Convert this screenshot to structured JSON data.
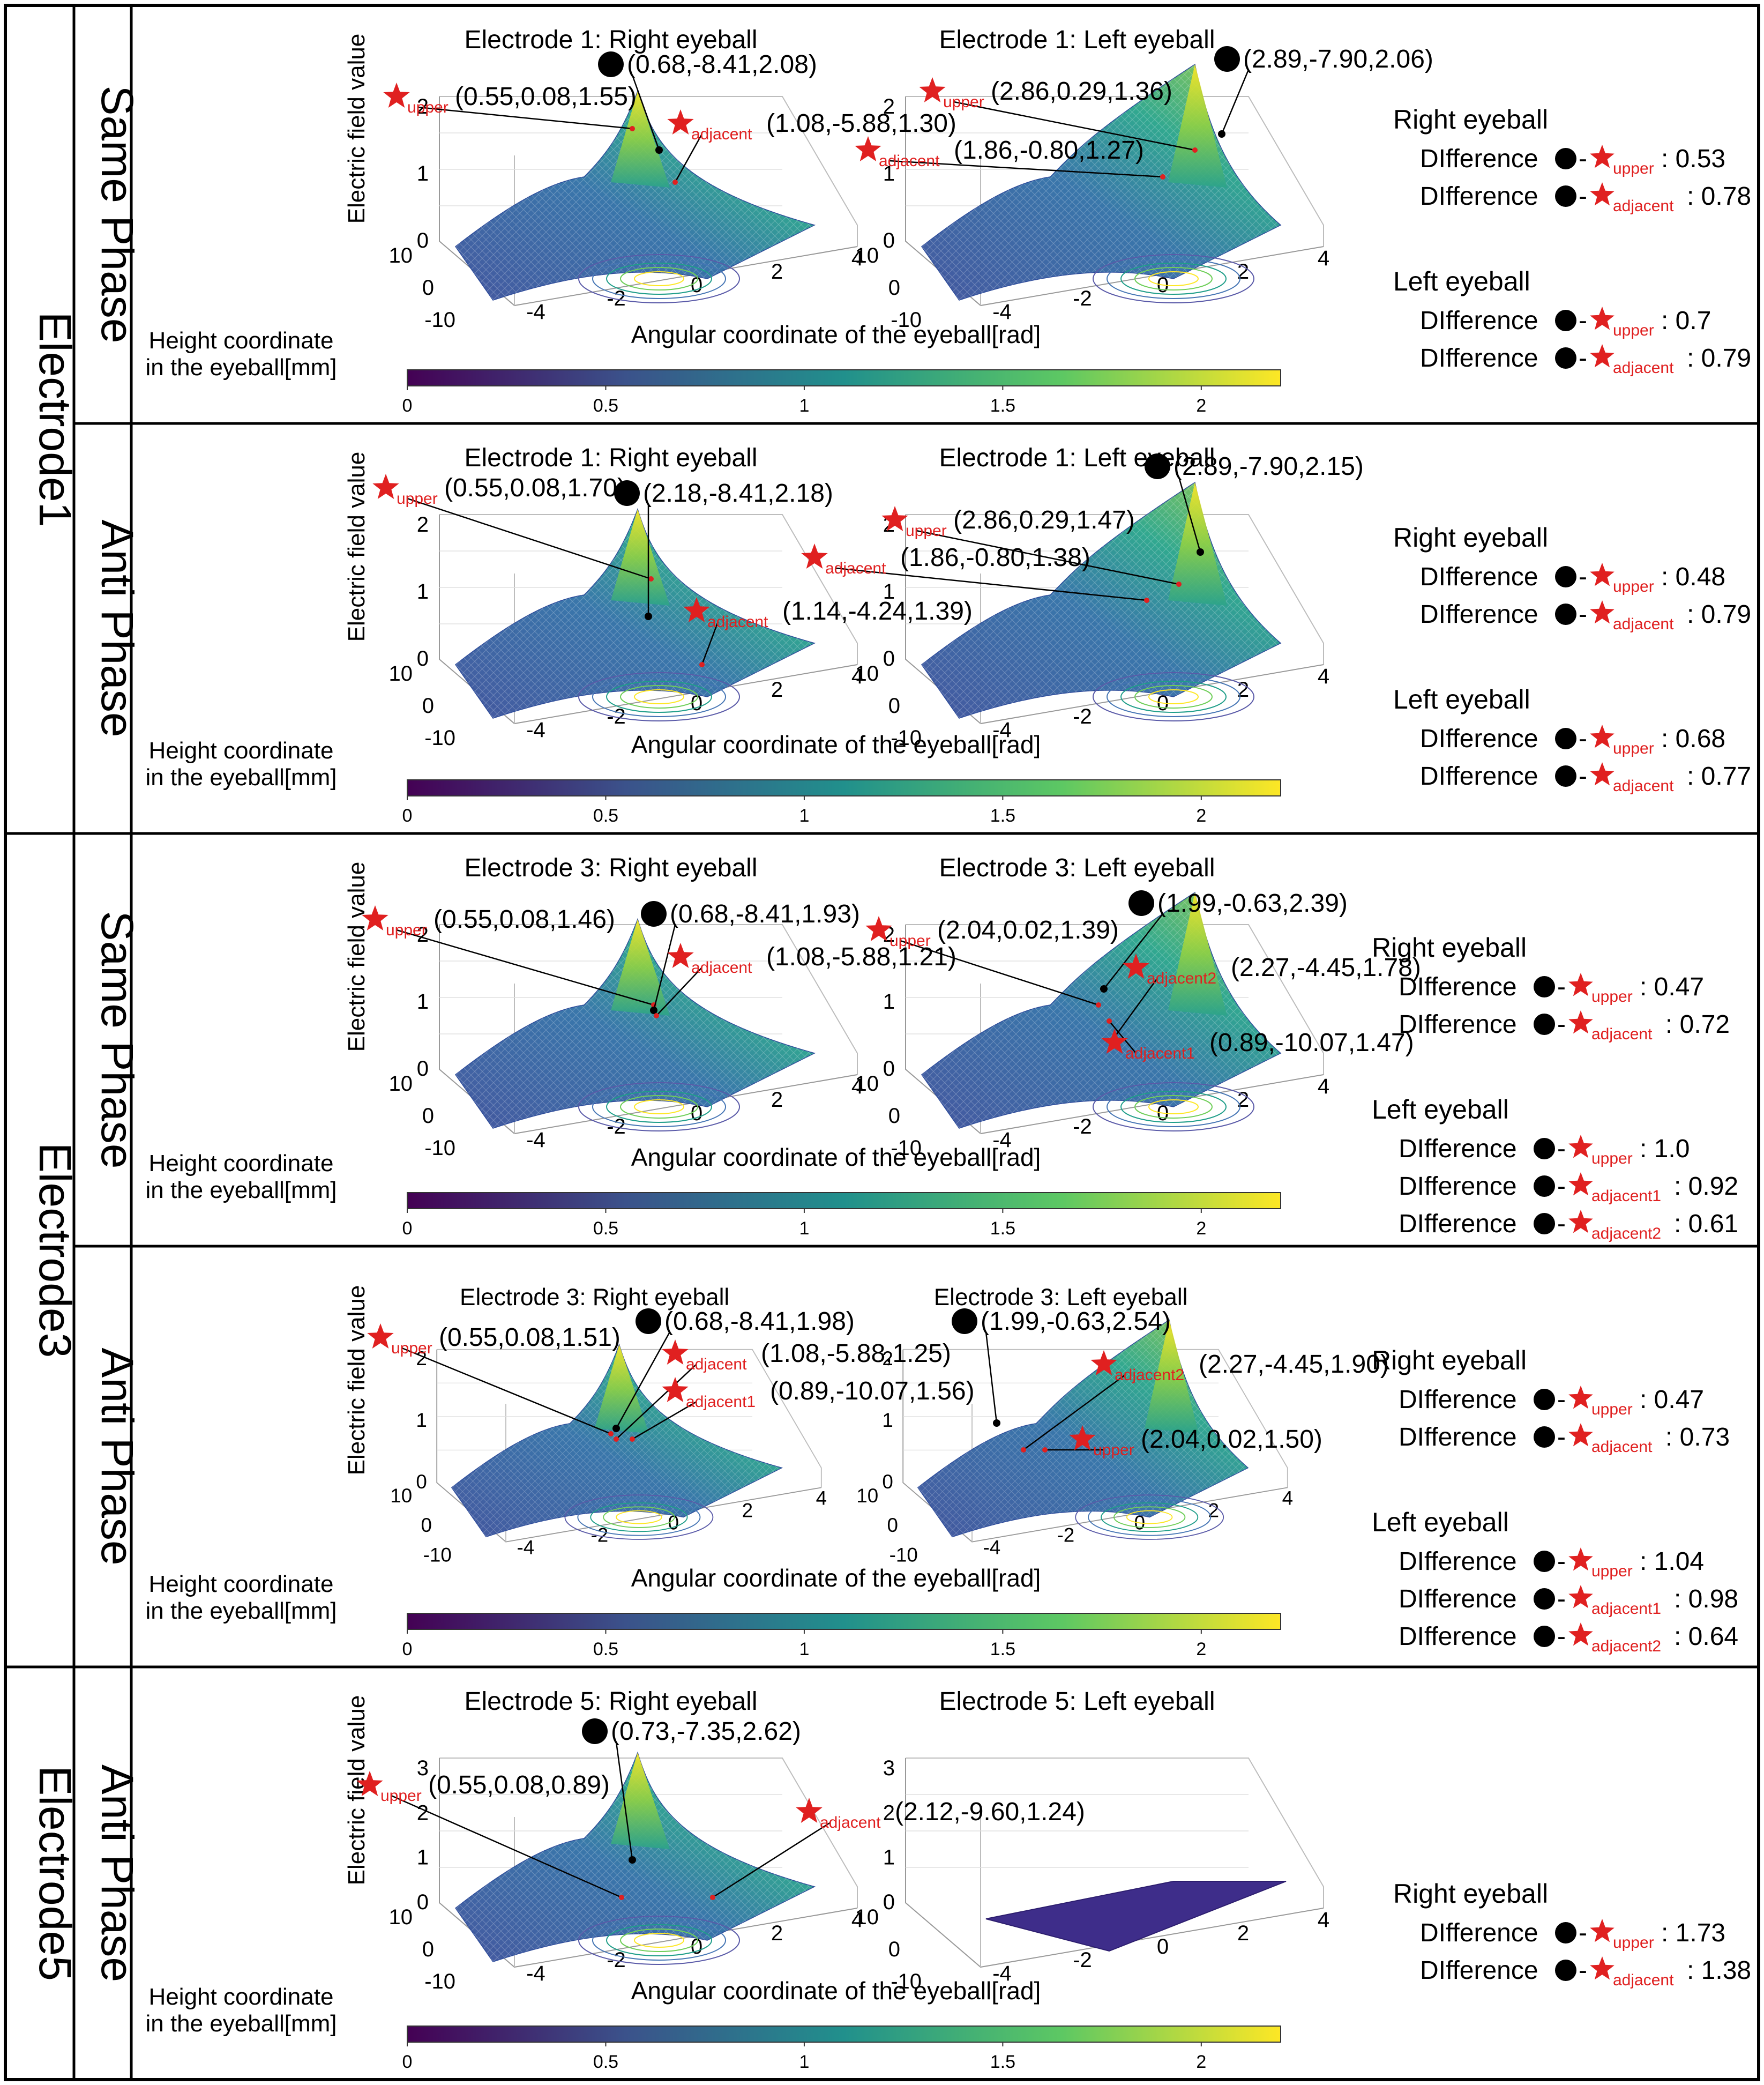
{
  "labels": {
    "eb": "Electric field value",
    "hc1": "Height coordinate",
    "hc2": "in the eyeball[mm]",
    "ang": "Angular coordinate of the eyeball[rad]",
    "right_eyeball": "Right eyeball",
    "left_eyeball": "Left eyeball",
    "diff": "DIfference",
    "dash": "-",
    "sub_upper": "upper",
    "sub_adjacent": "adjacent",
    "sub_adjacent1": "adjacent1",
    "sub_adjacent2": "adjacent2"
  },
  "colors": {
    "frame": "#000000",
    "star": "#e02020",
    "viridis": [
      "#440154",
      "#3b528b",
      "#21908c",
      "#5dc863",
      "#fde725"
    ]
  },
  "groups": [
    {
      "label": "Electrode1",
      "phases": [
        0,
        1
      ]
    },
    {
      "label": "Electrode3",
      "phases": [
        2,
        3
      ]
    },
    {
      "label": "Electrode5",
      "phases": [
        4
      ]
    }
  ],
  "chart_data": [
    {
      "type": "surface",
      "group": "Electrode1",
      "phase": "Same Phase",
      "colorbar": {
        "ticks": [
          "0",
          "0.5",
          "1",
          "1.5",
          "2"
        ],
        "range": [
          0,
          2.2
        ]
      },
      "left_ax": {
        "title": "Electrode 1: Right eyeball",
        "zticks": [
          "0",
          "1",
          "2"
        ],
        "yticks": [
          "10",
          "0",
          "-10"
        ],
        "xticks": [
          "-4",
          "-2",
          "0",
          "2",
          "4"
        ],
        "flat": false
      },
      "right_ax": {
        "title": "Electrode 1: Left eyeball",
        "zticks": [
          "0",
          "1",
          "2"
        ],
        "yticks": [
          "10",
          "0",
          "-10"
        ],
        "xticks": [
          "-4",
          "-2",
          "0",
          "2",
          "4"
        ],
        "flat": false
      },
      "annotations": [
        {
          "kind": "dot",
          "text": "(0.68,-8.41,2.08)"
        },
        {
          "kind": "star",
          "sub": "upper",
          "text": "(0.55,0.08,1.55)"
        },
        {
          "kind": "star",
          "sub": "adjacent",
          "text": "(1.08,-5.88,1.30)"
        },
        {
          "kind": "dot",
          "text": "(2.89,-7.90,2.06)"
        },
        {
          "kind": "star",
          "sub": "upper",
          "text": "(2.86,0.29,1.36)"
        },
        {
          "kind": "star",
          "sub": "adjacent",
          "text": "(1.86,-0.80,1.27)"
        }
      ],
      "diffs": [
        {
          "section": "Right eyeball",
          "items": [
            {
              "sub": "upper",
              "value": ": 0.53"
            },
            {
              "sub": "adjacent",
              "value": ": 0.78"
            }
          ]
        },
        {
          "section": "Left eyeball",
          "items": [
            {
              "sub": "upper",
              "value": ": 0.7"
            },
            {
              "sub": "adjacent",
              "value": ": 0.79"
            }
          ]
        }
      ]
    },
    {
      "type": "surface",
      "group": "Electrode1",
      "phase": "Anti Phase",
      "colorbar": {
        "ticks": [
          "0",
          "0.5",
          "1",
          "1.5",
          "2"
        ],
        "range": [
          0,
          2.2
        ]
      },
      "left_ax": {
        "title": "Electrode 1: Right eyeball",
        "zticks": [
          "0",
          "1",
          "2"
        ],
        "yticks": [
          "10",
          "0",
          "-10"
        ],
        "xticks": [
          "-4",
          "-2",
          "0",
          "2",
          "4"
        ],
        "flat": false
      },
      "right_ax": {
        "title": "Electrode 1: Left eyeball",
        "zticks": [
          "0",
          "1",
          "2"
        ],
        "yticks": [
          "10",
          "0",
          "-10"
        ],
        "xticks": [
          "-4",
          "-2",
          "0",
          "2",
          "4"
        ],
        "flat": false
      },
      "annotations": [
        {
          "kind": "star",
          "sub": "upper",
          "text": "(0.55,0.08,1.70)"
        },
        {
          "kind": "dot",
          "text": "(2.18,-8.41,2.18)"
        },
        {
          "kind": "star",
          "sub": "adjacent",
          "text": "(1.14,-4.24,1.39)"
        },
        {
          "kind": "dot",
          "text": "(2.89,-7.90,2.15)"
        },
        {
          "kind": "star",
          "sub": "upper",
          "text": "(2.86,0.29,1.47)"
        },
        {
          "kind": "star",
          "sub": "adjacent",
          "text": "(1.86,-0.80,1.38)"
        }
      ],
      "diffs": [
        {
          "section": "Right eyeball",
          "items": [
            {
              "sub": "upper",
              "value": ": 0.48"
            },
            {
              "sub": "adjacent",
              "value": ": 0.79"
            }
          ]
        },
        {
          "section": "Left eyeball",
          "items": [
            {
              "sub": "upper",
              "value": ": 0.68"
            },
            {
              "sub": "adjacent",
              "value": ": 0.77"
            }
          ]
        }
      ]
    },
    {
      "type": "surface",
      "group": "Electrode3",
      "phase": "Same Phase",
      "colorbar": {
        "ticks": [
          "0",
          "0.5",
          "1",
          "1.5",
          "2"
        ],
        "range": [
          0,
          2.2
        ]
      },
      "left_ax": {
        "title": "Electrode 3: Right eyeball",
        "zticks": [
          "0",
          "1",
          "2"
        ],
        "yticks": [
          "10",
          "0",
          "-10"
        ],
        "xticks": [
          "-4",
          "-2",
          "0",
          "2",
          "4"
        ],
        "flat": false
      },
      "right_ax": {
        "title": "Electrode 3: Left eyeball",
        "zticks": [
          "0",
          "1",
          "2"
        ],
        "yticks": [
          "10",
          "0",
          "-10"
        ],
        "xticks": [
          "-4",
          "-2",
          "0",
          "2",
          "4"
        ],
        "flat": false
      },
      "annotations": [
        {
          "kind": "star",
          "sub": "upper",
          "text": "(0.55,0.08,1.46)"
        },
        {
          "kind": "dot",
          "text": "(0.68,-8.41,1.93)"
        },
        {
          "kind": "star",
          "sub": "adjacent",
          "text": "(1.08,-5.88,1.21)"
        },
        {
          "kind": "dot",
          "text": "(1.99,-0.63,2.39)"
        },
        {
          "kind": "star",
          "sub": "upper",
          "text": "(2.04,0.02,1.39)"
        },
        {
          "kind": "star",
          "sub": "adjacent2",
          "text": "(2.27,-4.45,1.78)"
        },
        {
          "kind": "star",
          "sub": "adjacent1",
          "text": "(0.89,-10.07,1.47)"
        }
      ],
      "diffs": [
        {
          "section": "Right eyeball",
          "items": [
            {
              "sub": "upper",
              "value": ": 0.47"
            },
            {
              "sub": "adjacent",
              "value": ": 0.72"
            }
          ]
        },
        {
          "section": "Left eyeball",
          "items": [
            {
              "sub": "upper",
              "value": ": 1.0"
            },
            {
              "sub": "adjacent1",
              "value": ": 0.92"
            },
            {
              "sub": "adjacent2",
              "value": ": 0.61"
            }
          ]
        }
      ]
    },
    {
      "type": "surface",
      "group": "Electrode3",
      "phase": "Anti Phase",
      "colorbar": {
        "ticks": [
          "0",
          "0.5",
          "1",
          "1.5",
          "2"
        ],
        "range": [
          0,
          2.2
        ]
      },
      "left_ax": {
        "title": "Electrode 3: Right eyeball",
        "zticks": [
          "0",
          "1",
          "2"
        ],
        "yticks": [
          "10",
          "0",
          "-10"
        ],
        "xticks": [
          "-4",
          "-2",
          "0",
          "2",
          "4"
        ],
        "flat": false
      },
      "right_ax": {
        "title": "Electrode 3: Left eyeball",
        "zticks": [
          "0",
          "1",
          "2"
        ],
        "yticks": [
          "10",
          "0",
          "-10"
        ],
        "xticks": [
          "-4",
          "-2",
          "0",
          "2",
          "4"
        ],
        "flat": false
      },
      "annotations": [
        {
          "kind": "star",
          "sub": "upper",
          "text": "(0.55,0.08,1.51)"
        },
        {
          "kind": "dot",
          "text": "(0.68,-8.41,1.98)"
        },
        {
          "kind": "star",
          "sub": "adjacent",
          "text": "(1.08,-5.88,1.25)"
        },
        {
          "kind": "star",
          "sub": "adjacent1",
          "text": "(0.89,-10.07,1.56)"
        },
        {
          "kind": "dot",
          "text": "(1.99,-0.63,2.54)"
        },
        {
          "kind": "star",
          "sub": "adjacent2",
          "text": "(2.27,-4.45,1.90)"
        },
        {
          "kind": "star",
          "sub": "upper",
          "text": "(2.04,0.02,1.50)"
        }
      ],
      "diffs": [
        {
          "section": "Right eyeball",
          "items": [
            {
              "sub": "upper",
              "value": ": 0.47"
            },
            {
              "sub": "adjacent",
              "value": ": 0.73"
            }
          ]
        },
        {
          "section": "Left eyeball",
          "items": [
            {
              "sub": "upper",
              "value": ": 1.04"
            },
            {
              "sub": "adjacent1",
              "value": ": 0.98"
            },
            {
              "sub": "adjacent2",
              "value": ": 0.64"
            }
          ]
        }
      ]
    },
    {
      "type": "surface",
      "group": "Electrode5",
      "phase": "Anti Phase",
      "colorbar": {
        "ticks": [
          "0",
          "0.5",
          "1",
          "1.5",
          "2"
        ],
        "range": [
          0,
          2.2
        ]
      },
      "left_ax": {
        "title": "Electrode 5: Right eyeball",
        "zticks": [
          "0",
          "1",
          "2",
          "3"
        ],
        "yticks": [
          "10",
          "0",
          "-10"
        ],
        "xticks": [
          "-4",
          "-2",
          "0",
          "2",
          "4"
        ],
        "flat": false
      },
      "right_ax": {
        "title": "Electrode 5: Left eyeball",
        "zticks": [
          "0",
          "1",
          "2",
          "3"
        ],
        "yticks": [
          "10",
          "0",
          "-10"
        ],
        "xticks": [
          "-4",
          "-2",
          "0",
          "2",
          "4"
        ],
        "flat": true
      },
      "annotations": [
        {
          "kind": "dot",
          "text": "(0.73,-7.35,2.62)"
        },
        {
          "kind": "star",
          "sub": "upper",
          "text": "(0.55,0.08,0.89)"
        },
        {
          "kind": "star",
          "sub": "adjacent",
          "text": "(2.12,-9.60,1.24)"
        }
      ],
      "diffs": [
        {
          "section": "Right eyeball",
          "items": [
            {
              "sub": "upper",
              "value": ": 1.73"
            },
            {
              "sub": "adjacent",
              "value": ": 1.38"
            }
          ]
        }
      ]
    }
  ]
}
